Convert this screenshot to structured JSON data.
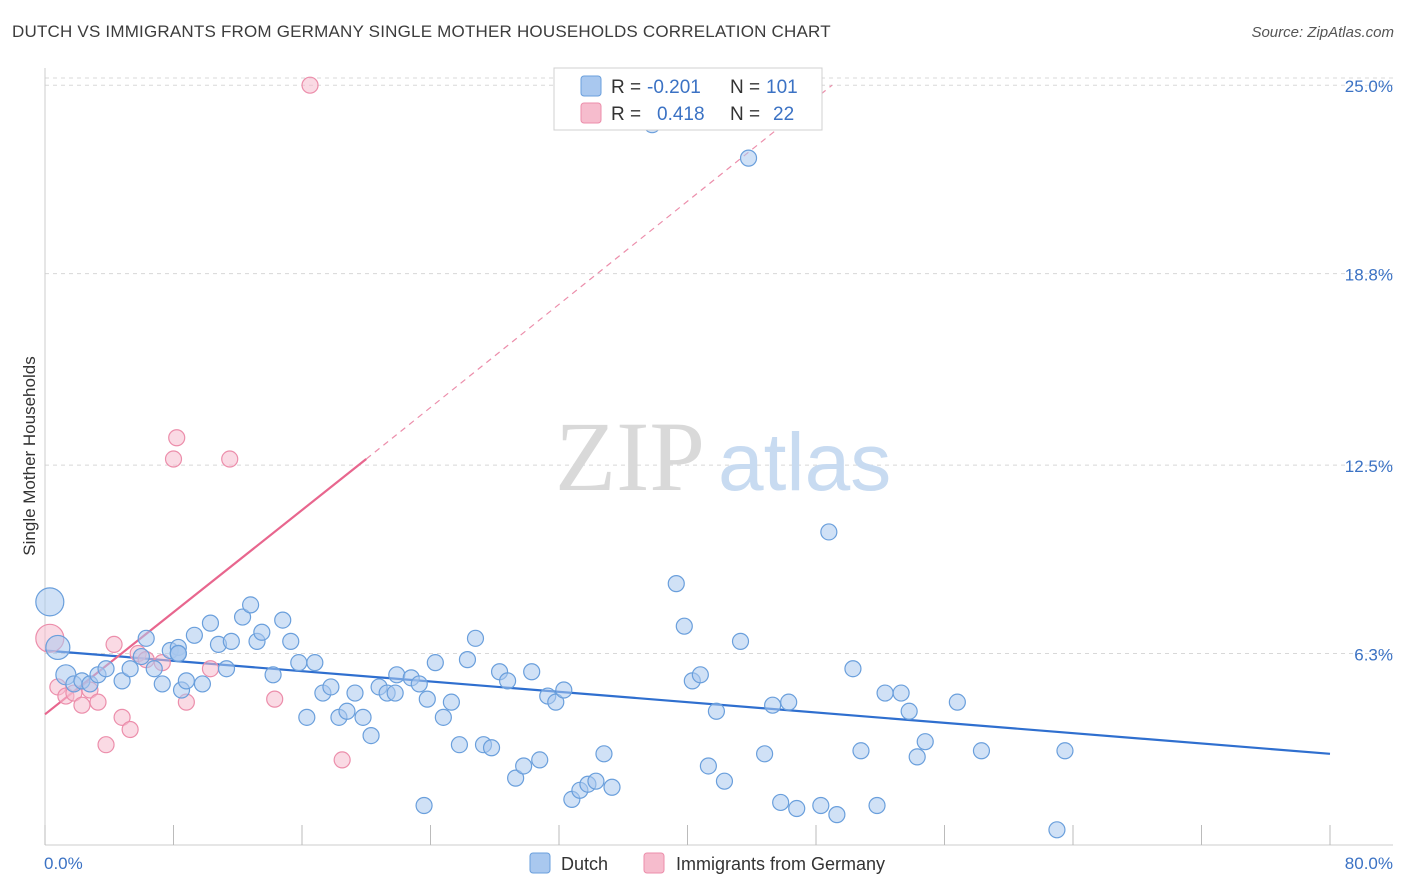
{
  "title": "DUTCH VS IMMIGRANTS FROM GERMANY SINGLE MOTHER HOUSEHOLDS CORRELATION CHART",
  "source": "Source: ZipAtlas.com",
  "watermark": {
    "zip": "ZIP",
    "atlas": "atlas"
  },
  "colors": {
    "dutch_fill": "#a9c8ef",
    "dutch_stroke": "#6a9fdc",
    "dutch_line": "#2f6fcf",
    "germany_fill": "#f6bccd",
    "germany_stroke": "#ec8eab",
    "germany_line": "#e8668e",
    "grid": "#d8d8d8",
    "accent_text": "#3b72c4"
  },
  "legend": {
    "rows": [
      {
        "r_label": "R =",
        "r_value": "-0.201",
        "n_label": "N =",
        "n_value": "101",
        "series": "dutch"
      },
      {
        "r_label": "R =",
        "r_value": "0.418",
        "n_label": "N =",
        "n_value": "22",
        "series": "germany"
      }
    ]
  },
  "bottom_legend": [
    {
      "label": "Dutch",
      "series": "dutch"
    },
    {
      "label": "Immigrants from Germany",
      "series": "germany"
    }
  ],
  "chart_data": {
    "type": "scatter",
    "title": "DUTCH VS IMMIGRANTS FROM GERMANY SINGLE MOTHER HOUSEHOLDS CORRELATION CHART",
    "xlabel": "",
    "ylabel": "Single Mother Households",
    "xlim": [
      0,
      80
    ],
    "ylim": [
      0,
      25.5
    ],
    "x_tick_labels": [
      "0.0%",
      "80.0%"
    ],
    "y_ticks": [
      6.3,
      12.5,
      18.8,
      25.0
    ],
    "y_tick_labels": [
      "6.3%",
      "12.5%",
      "18.8%",
      "25.0%"
    ],
    "grid": true,
    "legend_position": "top-center",
    "series": [
      {
        "name": "Dutch",
        "color": "#6a9fdc",
        "trend": {
          "x": [
            0,
            80
          ],
          "y": [
            6.4,
            3.0
          ],
          "style": "solid"
        },
        "points": [
          [
            0.3,
            8.0,
            14
          ],
          [
            0.8,
            6.5,
            12
          ],
          [
            1.3,
            5.6,
            10
          ],
          [
            1.8,
            5.3,
            8
          ],
          [
            2.3,
            5.4,
            8
          ],
          [
            2.8,
            5.3,
            8
          ],
          [
            3.3,
            5.6,
            8
          ],
          [
            3.8,
            5.8,
            8
          ],
          [
            4.8,
            5.4,
            8
          ],
          [
            5.3,
            5.8,
            8
          ],
          [
            6.0,
            6.2,
            8
          ],
          [
            6.3,
            6.8,
            8
          ],
          [
            6.8,
            5.8,
            8
          ],
          [
            7.3,
            5.3,
            8
          ],
          [
            7.8,
            6.4,
            8
          ],
          [
            8.3,
            6.5,
            8
          ],
          [
            8.3,
            6.3,
            8
          ],
          [
            8.3,
            6.3,
            8
          ],
          [
            8.3,
            6.3,
            8
          ],
          [
            8.5,
            5.1,
            8
          ],
          [
            8.8,
            5.4,
            8
          ],
          [
            9.3,
            6.9,
            8
          ],
          [
            9.8,
            5.3,
            8
          ],
          [
            10.3,
            7.3,
            8
          ],
          [
            10.8,
            6.6,
            8
          ],
          [
            11.3,
            5.8,
            8
          ],
          [
            11.6,
            6.7,
            8
          ],
          [
            12.3,
            7.5,
            8
          ],
          [
            12.8,
            7.9,
            8
          ],
          [
            13.2,
            6.7,
            8
          ],
          [
            13.5,
            7.0,
            8
          ],
          [
            14.2,
            5.6,
            8
          ],
          [
            14.8,
            7.4,
            8
          ],
          [
            15.3,
            6.7,
            8
          ],
          [
            15.8,
            6.0,
            8
          ],
          [
            16.3,
            4.2,
            8
          ],
          [
            16.8,
            6.0,
            8
          ],
          [
            17.3,
            5.0,
            8
          ],
          [
            17.8,
            5.2,
            8
          ],
          [
            18.3,
            4.2,
            8
          ],
          [
            18.8,
            4.4,
            8
          ],
          [
            19.3,
            5.0,
            8
          ],
          [
            19.8,
            4.2,
            8
          ],
          [
            20.3,
            3.6,
            8
          ],
          [
            20.8,
            5.2,
            8
          ],
          [
            21.3,
            5.0,
            8
          ],
          [
            21.8,
            5.0,
            8
          ],
          [
            21.9,
            5.6,
            8
          ],
          [
            22.8,
            5.5,
            8
          ],
          [
            23.3,
            5.3,
            8
          ],
          [
            23.6,
            1.3,
            8
          ],
          [
            23.8,
            4.8,
            8
          ],
          [
            24.3,
            6.0,
            8
          ],
          [
            24.8,
            4.2,
            8
          ],
          [
            25.3,
            4.7,
            8
          ],
          [
            25.8,
            3.3,
            8
          ],
          [
            26.3,
            6.1,
            8
          ],
          [
            26.8,
            6.8,
            8
          ],
          [
            27.3,
            3.3,
            8
          ],
          [
            27.8,
            3.2,
            8
          ],
          [
            28.3,
            5.7,
            8
          ],
          [
            28.8,
            5.4,
            8
          ],
          [
            29.3,
            2.2,
            8
          ],
          [
            29.8,
            2.6,
            8
          ],
          [
            30.3,
            5.7,
            8
          ],
          [
            30.8,
            2.8,
            8
          ],
          [
            31.3,
            4.9,
            8
          ],
          [
            31.8,
            4.7,
            8
          ],
          [
            32.3,
            5.1,
            8
          ],
          [
            32.8,
            1.5,
            8
          ],
          [
            33.3,
            1.8,
            8
          ],
          [
            33.8,
            2.0,
            8
          ],
          [
            34.3,
            2.1,
            8
          ],
          [
            34.8,
            3.0,
            8
          ],
          [
            35.3,
            1.9,
            8
          ],
          [
            37.8,
            23.7,
            8
          ],
          [
            39.3,
            8.6,
            8
          ],
          [
            39.8,
            7.2,
            8
          ],
          [
            40.3,
            5.4,
            8
          ],
          [
            40.8,
            5.6,
            8
          ],
          [
            41.3,
            2.6,
            8
          ],
          [
            41.8,
            4.4,
            8
          ],
          [
            42.3,
            2.1,
            8
          ],
          [
            43.3,
            6.7,
            8
          ],
          [
            43.8,
            22.6,
            8
          ],
          [
            44.8,
            3.0,
            8
          ],
          [
            45.3,
            4.6,
            8
          ],
          [
            45.8,
            1.4,
            8
          ],
          [
            46.3,
            4.7,
            8
          ],
          [
            46.8,
            1.2,
            8
          ],
          [
            48.3,
            1.3,
            8
          ],
          [
            48.8,
            10.3,
            8
          ],
          [
            49.3,
            1.0,
            8
          ],
          [
            50.3,
            5.8,
            8
          ],
          [
            50.8,
            3.1,
            8
          ],
          [
            51.8,
            1.3,
            8
          ],
          [
            52.3,
            5.0,
            8
          ],
          [
            53.3,
            5.0,
            8
          ],
          [
            53.8,
            4.4,
            8
          ],
          [
            54.3,
            2.9,
            8
          ],
          [
            54.8,
            3.4,
            8
          ],
          [
            56.8,
            4.7,
            8
          ],
          [
            58.3,
            3.1,
            8
          ],
          [
            63.0,
            0.5,
            8
          ],
          [
            63.5,
            3.1,
            8
          ]
        ]
      },
      {
        "name": "Immigrants from Germany",
        "color": "#ec8eab",
        "trend": {
          "x": [
            0,
            20
          ],
          "y": [
            4.3,
            12.7
          ],
          "style": "solid",
          "extended_x": [
            20,
            49
          ],
          "extended_y": [
            12.7,
            25.0
          ]
        },
        "points": [
          [
            0.3,
            6.8,
            14
          ],
          [
            0.8,
            5.2,
            8
          ],
          [
            1.3,
            4.9,
            8
          ],
          [
            1.8,
            5.0,
            8
          ],
          [
            2.3,
            4.6,
            8
          ],
          [
            2.8,
            5.1,
            8
          ],
          [
            3.3,
            4.7,
            8
          ],
          [
            3.8,
            3.3,
            8
          ],
          [
            4.3,
            6.6,
            8
          ],
          [
            4.8,
            4.2,
            8
          ],
          [
            5.3,
            3.8,
            8
          ],
          [
            5.8,
            6.3,
            8
          ],
          [
            6.3,
            6.1,
            8
          ],
          [
            7.3,
            6.0,
            8
          ],
          [
            8.0,
            12.7,
            8
          ],
          [
            8.2,
            13.4,
            8
          ],
          [
            8.8,
            4.7,
            8
          ],
          [
            10.3,
            5.8,
            8
          ],
          [
            11.5,
            12.7,
            8
          ],
          [
            14.3,
            4.8,
            8
          ],
          [
            16.5,
            25.0,
            8
          ],
          [
            18.5,
            2.8,
            8
          ]
        ]
      }
    ]
  }
}
